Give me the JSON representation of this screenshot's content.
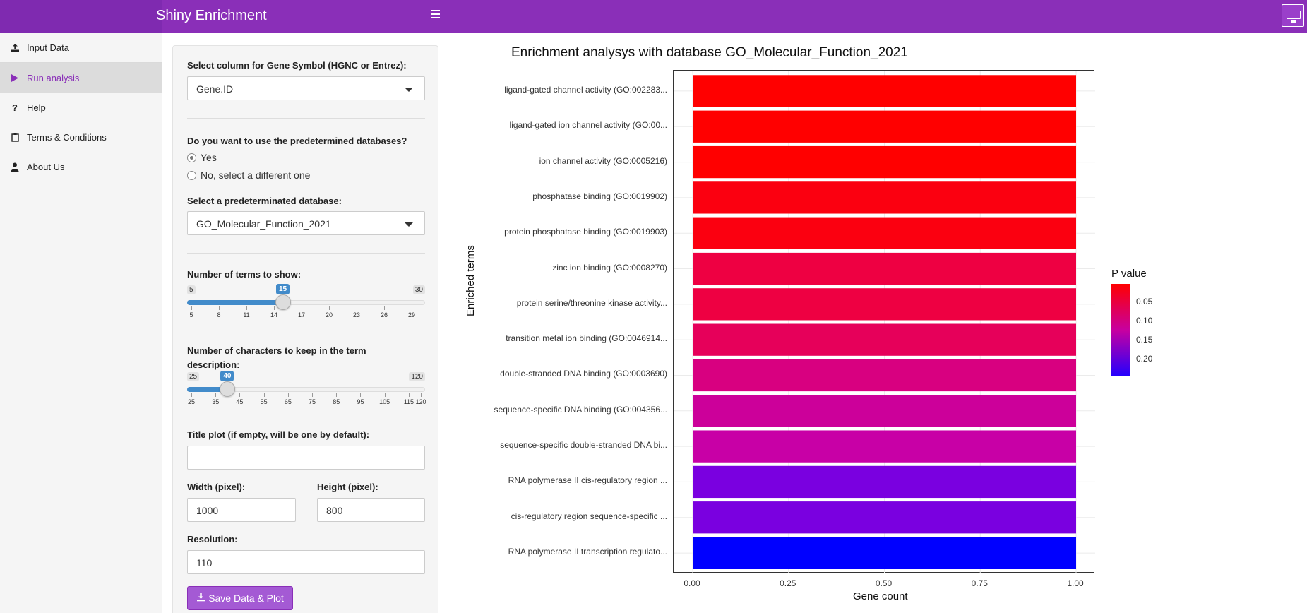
{
  "header": {
    "title": "Shiny Enrichment",
    "toggle_icon": "menu-icon",
    "logo_icon": "university-logo-icon"
  },
  "sidebar": {
    "items": [
      {
        "label": "Input Data",
        "icon": "upload-icon",
        "active": false
      },
      {
        "label": "Run analysis",
        "icon": "play-icon",
        "active": true
      },
      {
        "label": "Help",
        "icon": "question-icon",
        "active": false
      },
      {
        "label": "Terms & Conditions",
        "icon": "clipboard-icon",
        "active": false
      },
      {
        "label": "About Us",
        "icon": "user-icon",
        "active": false
      }
    ]
  },
  "form": {
    "gene_col_label": "Select column for Gene Symbol (HGNC or Entrez):",
    "gene_col_value": "Gene.ID",
    "predetermined_label": "Do you want to use the predetermined databases?",
    "radio_yes": "Yes",
    "radio_no": "No, select a different one",
    "db_label": "Select a predeterminated database:",
    "db_value": "GO_Molecular_Function_2021",
    "terms_label": "Number of terms to show:",
    "terms_slider": {
      "min": 5,
      "max": 30,
      "value": 15,
      "ticks": [
        5,
        8,
        11,
        14,
        17,
        20,
        23,
        26,
        29
      ]
    },
    "chars_label_1": "Number of characters to keep in the term",
    "chars_label_2": "description:",
    "chars_slider": {
      "min": 25,
      "max": 120,
      "value": 40,
      "ticks": [
        25,
        35,
        45,
        55,
        65,
        75,
        85,
        95,
        105,
        115,
        120
      ]
    },
    "title_label": "Title plot (if empty, will be one by default):",
    "title_value": "",
    "width_label": "Width (pixel):",
    "width_value": "1000",
    "height_label": "Height (pixel):",
    "height_value": "800",
    "resolution_label": "Resolution:",
    "resolution_value": "110",
    "save_label": "Save Data & Plot"
  },
  "chart_data": {
    "type": "bar",
    "orientation": "horizontal",
    "title": "Enrichment analysys with database GO_Molecular_Function_2021",
    "xlabel": "Gene count",
    "ylabel": "Enriched terms",
    "xlim": [
      0,
      1
    ],
    "xticks": [
      "0.00",
      "0.25",
      "0.50",
      "0.75",
      "1.00"
    ],
    "categories": [
      "ligand-gated channel activity (GO:002283...",
      "ligand-gated ion channel activity (GO:00...",
      "ion channel activity (GO:0005216)",
      "phosphatase binding (GO:0019902)",
      "protein phosphatase binding (GO:0019903)",
      "zinc ion binding (GO:0008270)",
      "protein serine/threonine kinase activity...",
      "transition metal ion binding (GO:0046914...",
      "double-stranded DNA binding (GO:0003690)",
      "sequence-specific DNA binding (GO:004356...",
      "sequence-specific double-stranded DNA bi...",
      "RNA polymerase II cis-regulatory region ...",
      "cis-regulatory region sequence-specific ...",
      "RNA polymerase II transcription regulato..."
    ],
    "values": [
      1,
      1,
      1,
      1,
      1,
      1,
      1,
      1,
      1,
      1,
      1,
      1,
      1,
      1
    ],
    "colors": [
      "#ff0000",
      "#ff0000",
      "#ff0000",
      "#fb0010",
      "#fb0010",
      "#ee0042",
      "#ee0042",
      "#e6005a",
      "#d80080",
      "#cc009a",
      "#c800a6",
      "#7a00e0",
      "#7a00e0",
      "#0000ff"
    ],
    "legend": {
      "title": "P value",
      "ticks": [
        "0.05",
        "0.10",
        "0.15",
        "0.20"
      ],
      "placement": "right"
    },
    "grid": true
  }
}
